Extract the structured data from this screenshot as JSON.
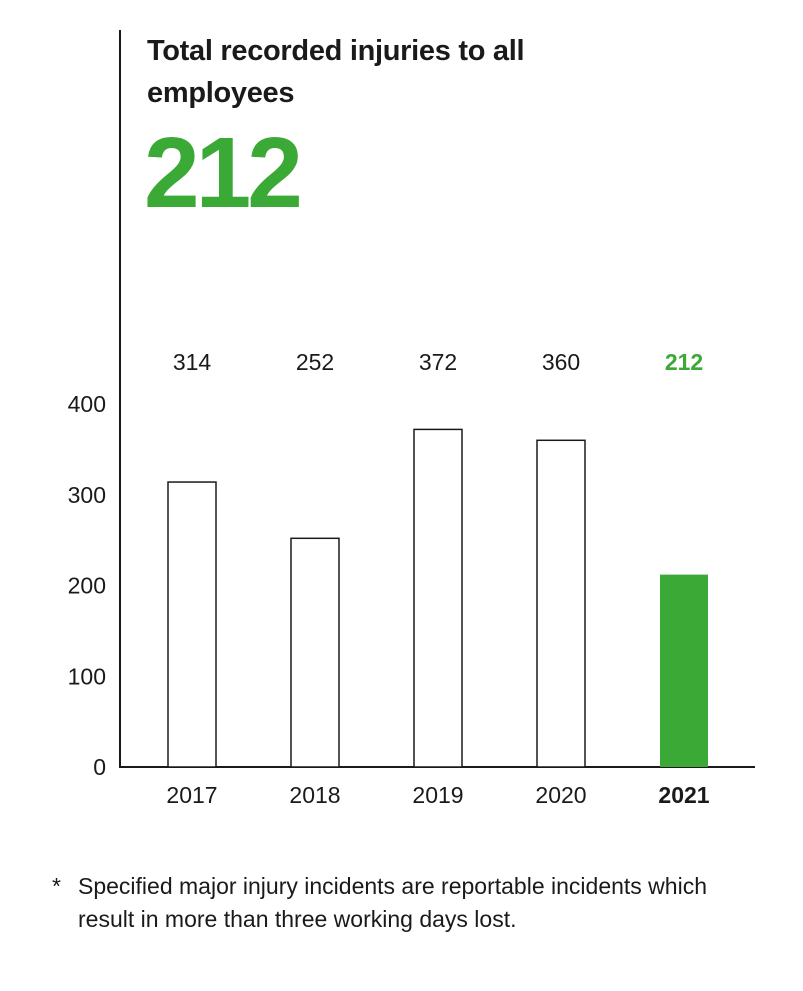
{
  "header": {
    "title": "Total recorded injuries to all employees",
    "headline_value": "212"
  },
  "footnote": {
    "marker": "*",
    "text": "Specified major injury incidents are reportable incidents which result in more than three working days lost."
  },
  "colors": {
    "accent": "#3aa935",
    "text": "#1a1a1a",
    "bar_outline": "#1a1a1a",
    "bar_fill": "#ffffff"
  },
  "chart_data": {
    "type": "bar",
    "categories": [
      "2017",
      "2018",
      "2019",
      "2020",
      "2021"
    ],
    "values": [
      314,
      252,
      372,
      360,
      212
    ],
    "value_labels": [
      "314",
      "252",
      "372",
      "360",
      "212"
    ],
    "highlight_index": 4,
    "yticks": [
      0,
      100,
      200,
      300,
      400
    ],
    "ylim": [
      0,
      400
    ],
    "grid": false,
    "xlabel": "",
    "ylabel": ""
  }
}
